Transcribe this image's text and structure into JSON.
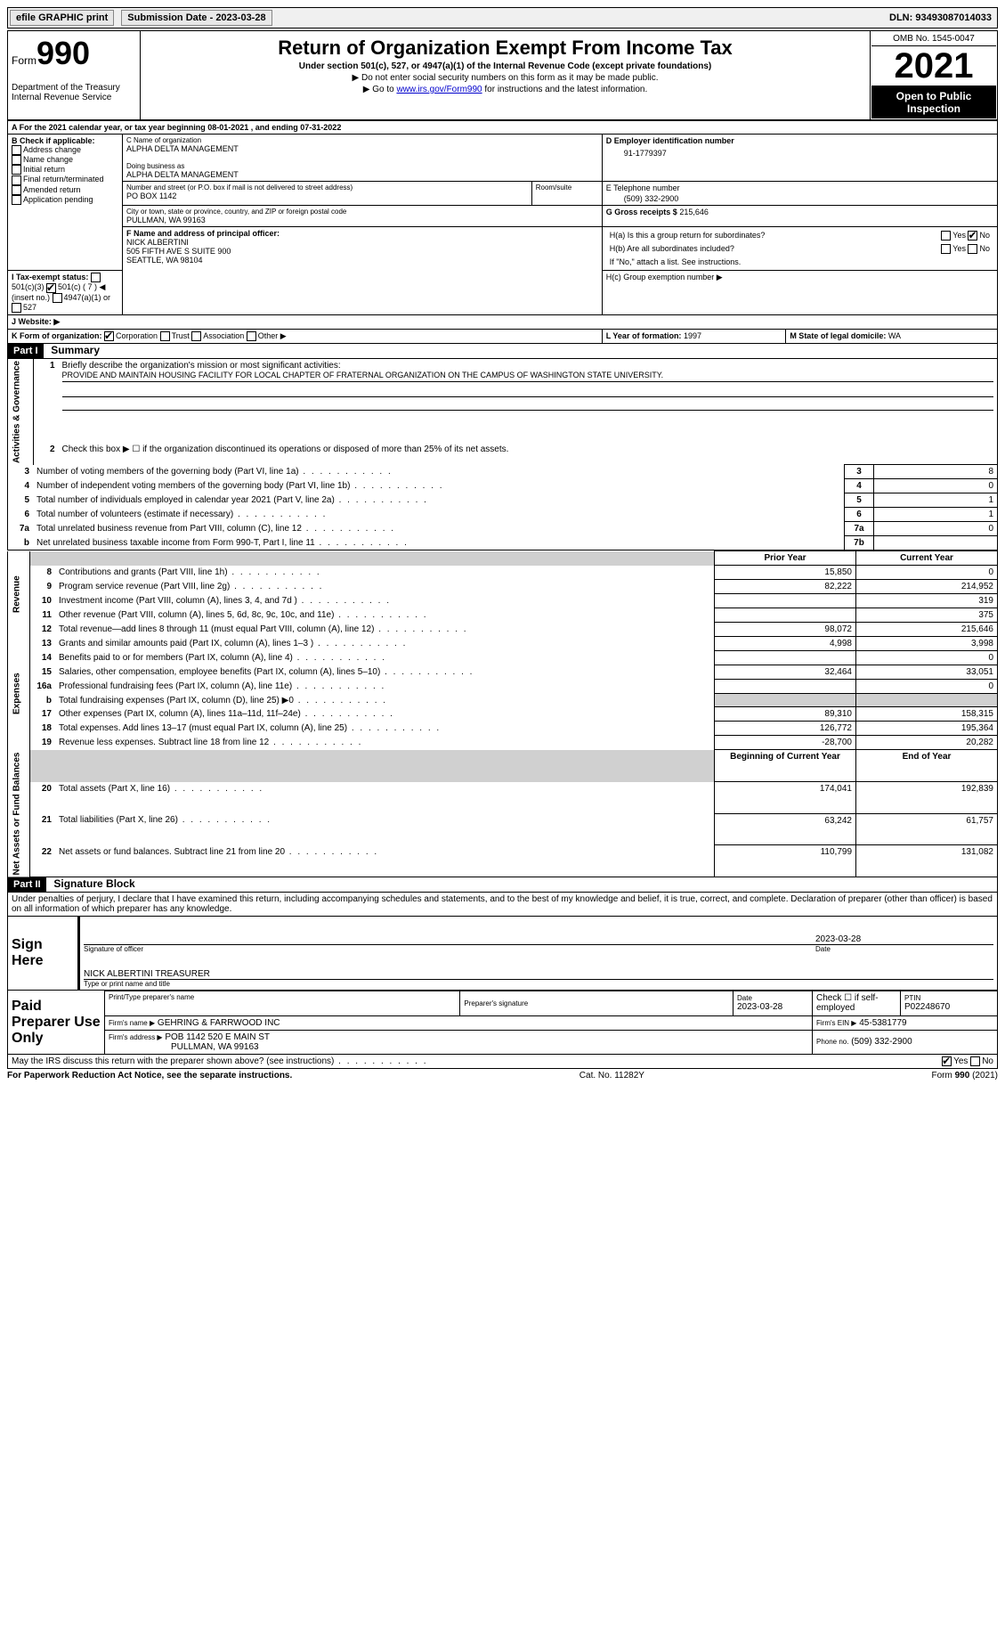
{
  "topbar": {
    "efile": "efile GRAPHIC print",
    "submission": "Submission Date - 2023-03-28",
    "dln": "DLN: 93493087014033"
  },
  "header": {
    "form_word": "Form",
    "form_no": "990",
    "title": "Return of Organization Exempt From Income Tax",
    "sub1": "Under section 501(c), 527, or 4947(a)(1) of the Internal Revenue Code (except private foundations)",
    "sub2": "▶ Do not enter social security numbers on this form as it may be made public.",
    "sub3_pre": "▶ Go to ",
    "sub3_link": "www.irs.gov/Form990",
    "sub3_post": " for instructions and the latest information.",
    "dept": "Department of the Treasury\nInternal Revenue Service",
    "omb": "OMB No. 1545-0047",
    "year": "2021",
    "open": "Open to Public Inspection"
  },
  "A": {
    "line": "A For the 2021 calendar year, or tax year beginning 08-01-2021    , and ending 07-31-2022"
  },
  "B": {
    "label": "B Check if applicable:",
    "opts": [
      "Address change",
      "Name change",
      "Initial return",
      "Final return/terminated",
      "Amended return",
      "Application pending"
    ]
  },
  "C": {
    "name_label": "C Name of organization",
    "name": "ALPHA DELTA MANAGEMENT",
    "dba_label": "Doing business as",
    "dba": "ALPHA DELTA MANAGEMENT",
    "street_label": "Number and street (or P.O. box if mail is not delivered to street address)",
    "room_label": "Room/suite",
    "street": "PO BOX 1142",
    "city_label": "City or town, state or province, country, and ZIP or foreign postal code",
    "city": "PULLMAN, WA  99163"
  },
  "D": {
    "label": "D Employer identification number",
    "val": "91-1779397"
  },
  "E": {
    "label": "E Telephone number",
    "val": "(509) 332-2900"
  },
  "G": {
    "label": "G Gross receipts $",
    "val": "215,646"
  },
  "F": {
    "label": "F  Name and address of principal officer:",
    "name": "NICK ALBERTINI",
    "addr1": "505 FIFTH AVE S SUITE 900",
    "addr2": "SEATTLE, WA  98104"
  },
  "H": {
    "a": "H(a)  Is this a group return for subordinates?",
    "b": "H(b)  Are all subordinates included?",
    "b_note": "If \"No,\" attach a list. See instructions.",
    "c": "H(c)  Group exemption number ▶",
    "yes": "Yes",
    "no": "No"
  },
  "I": {
    "label": "I  Tax-exempt status:",
    "o1": "501(c)(3)",
    "o2": "501(c) ( 7 ) ◀ (insert no.)",
    "o3": "4947(a)(1) or",
    "o4": "527"
  },
  "J": {
    "label": "J  Website: ▶"
  },
  "K": {
    "label": "K Form of organization:",
    "o1": "Corporation",
    "o2": "Trust",
    "o3": "Association",
    "o4": "Other ▶"
  },
  "L": {
    "label": "L Year of formation:",
    "val": "1997"
  },
  "M": {
    "label": "M State of legal domicile:",
    "val": "WA"
  },
  "part1": {
    "header": "Part I",
    "title": "Summary",
    "l1_label": "Briefly describe the organization's mission or most significant activities:",
    "l1_text": "PROVIDE AND MAINTAIN HOUSING FACILITY FOR LOCAL CHAPTER OF FRATERNAL ORGANIZATION ON THE CAMPUS OF WASHINGTON STATE UNIVERSITY.",
    "l2": "Check this box ▶ ☐ if the organization discontinued its operations or disposed of more than 25% of its net assets.",
    "lines_top": [
      {
        "n": "3",
        "t": "Number of voting members of the governing body (Part VI, line 1a)",
        "box": "3",
        "v": "8"
      },
      {
        "n": "4",
        "t": "Number of independent voting members of the governing body (Part VI, line 1b)",
        "box": "4",
        "v": "0"
      },
      {
        "n": "5",
        "t": "Total number of individuals employed in calendar year 2021 (Part V, line 2a)",
        "box": "5",
        "v": "1"
      },
      {
        "n": "6",
        "t": "Total number of volunteers (estimate if necessary)",
        "box": "6",
        "v": "1"
      },
      {
        "n": "7a",
        "t": "Total unrelated business revenue from Part VIII, column (C), line 12",
        "box": "7a",
        "v": "0"
      },
      {
        "n": "b",
        "t": "Net unrelated business taxable income from Form 990-T, Part I, line 11",
        "box": "7b",
        "v": ""
      }
    ],
    "col_prior": "Prior Year",
    "col_curr": "Current Year",
    "revenue": [
      {
        "n": "8",
        "t": "Contributions and grants (Part VIII, line 1h)",
        "p": "15,850",
        "c": "0"
      },
      {
        "n": "9",
        "t": "Program service revenue (Part VIII, line 2g)",
        "p": "82,222",
        "c": "214,952"
      },
      {
        "n": "10",
        "t": "Investment income (Part VIII, column (A), lines 3, 4, and 7d )",
        "p": "",
        "c": "319"
      },
      {
        "n": "11",
        "t": "Other revenue (Part VIII, column (A), lines 5, 6d, 8c, 9c, 10c, and 11e)",
        "p": "",
        "c": "375"
      },
      {
        "n": "12",
        "t": "Total revenue—add lines 8 through 11 (must equal Part VIII, column (A), line 12)",
        "p": "98,072",
        "c": "215,646"
      }
    ],
    "expenses": [
      {
        "n": "13",
        "t": "Grants and similar amounts paid (Part IX, column (A), lines 1–3 )",
        "p": "4,998",
        "c": "3,998"
      },
      {
        "n": "14",
        "t": "Benefits paid to or for members (Part IX, column (A), line 4)",
        "p": "",
        "c": "0"
      },
      {
        "n": "15",
        "t": "Salaries, other compensation, employee benefits (Part IX, column (A), lines 5–10)",
        "p": "32,464",
        "c": "33,051"
      },
      {
        "n": "16a",
        "t": "Professional fundraising fees (Part IX, column (A), line 11e)",
        "p": "",
        "c": "0"
      },
      {
        "n": "b",
        "t": "Total fundraising expenses (Part IX, column (D), line 25) ▶0",
        "p": "GREY",
        "c": "GREY"
      },
      {
        "n": "17",
        "t": "Other expenses (Part IX, column (A), lines 11a–11d, 11f–24e)",
        "p": "89,310",
        "c": "158,315"
      },
      {
        "n": "18",
        "t": "Total expenses. Add lines 13–17 (must equal Part IX, column (A), line 25)",
        "p": "126,772",
        "c": "195,364"
      },
      {
        "n": "19",
        "t": "Revenue less expenses. Subtract line 18 from line 12",
        "p": "-28,700",
        "c": "20,282"
      }
    ],
    "col_begin": "Beginning of Current Year",
    "col_end": "End of Year",
    "netassets": [
      {
        "n": "20",
        "t": "Total assets (Part X, line 16)",
        "p": "174,041",
        "c": "192,839"
      },
      {
        "n": "21",
        "t": "Total liabilities (Part X, line 26)",
        "p": "63,242",
        "c": "61,757"
      },
      {
        "n": "22",
        "t": "Net assets or fund balances. Subtract line 21 from line 20",
        "p": "110,799",
        "c": "131,082"
      }
    ],
    "side_ag": "Activities & Governance",
    "side_rev": "Revenue",
    "side_exp": "Expenses",
    "side_na": "Net Assets or Fund Balances"
  },
  "part2": {
    "header": "Part II",
    "title": "Signature Block",
    "decl": "Under penalties of perjury, I declare that I have examined this return, including accompanying schedules and statements, and to the best of my knowledge and belief, it is true, correct, and complete. Declaration of preparer (other than officer) is based on all information of which preparer has any knowledge.",
    "sign_here": "Sign Here",
    "sig_officer": "Signature of officer",
    "sig_date": "2023-03-28",
    "date_label": "Date",
    "name_title": "NICK ALBERTINI TREASURER",
    "name_title_label": "Type or print name and title",
    "paid": "Paid Preparer Use Only",
    "prep_name_label": "Print/Type preparer's name",
    "prep_sig_label": "Preparer's signature",
    "prep_date": "2023-03-28",
    "check_self": "Check ☐ if self-employed",
    "ptin_label": "PTIN",
    "ptin": "P02248670",
    "firm_name_label": "Firm's name    ▶",
    "firm_name": "GEHRING & FARRWOOD INC",
    "firm_ein_label": "Firm's EIN ▶",
    "firm_ein": "45-5381779",
    "firm_addr_label": "Firm's address ▶",
    "firm_addr1": "POB 1142 520 E MAIN ST",
    "firm_addr2": "PULLMAN, WA  99163",
    "phone_label": "Phone no.",
    "phone": "(509) 332-2900",
    "discuss": "May the IRS discuss this return with the preparer shown above? (see instructions)",
    "yes": "Yes",
    "no": "No"
  },
  "footer": {
    "left": "For Paperwork Reduction Act Notice, see the separate instructions.",
    "mid": "Cat. No. 11282Y",
    "right": "Form 990 (2021)"
  }
}
